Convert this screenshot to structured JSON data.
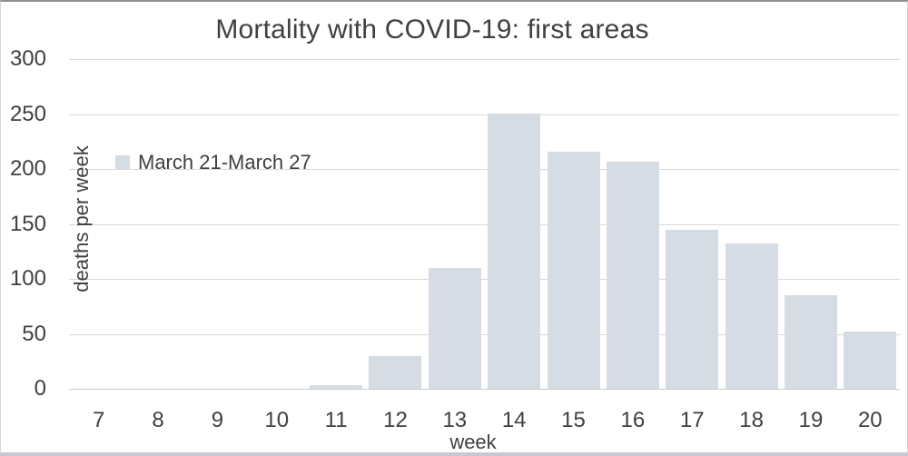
{
  "title": "Mortality with COVID-19: first areas",
  "legend": {
    "label": "March 21-March 27",
    "swatch_color": "#d6dce4"
  },
  "axes": {
    "y_title": "deaths per week",
    "x_title": "week"
  },
  "colors": {
    "bar": "#d6dce4",
    "gridline": "#d9d9d9",
    "zero_line": "#c9c9c9",
    "text": "#404040"
  },
  "chart_data": {
    "type": "bar",
    "title": "Mortality with COVID-19: first areas",
    "xlabel": "week",
    "ylabel": "deaths per week",
    "categories": [
      "7",
      "8",
      "9",
      "10",
      "11",
      "12",
      "13",
      "14",
      "15",
      "16",
      "17",
      "18",
      "19",
      "20"
    ],
    "series": [
      {
        "name": "March 21-March 27",
        "values": [
          0,
          0,
          0,
          0,
          3,
          30,
          110,
          250,
          216,
          207,
          145,
          132,
          85,
          52
        ]
      }
    ],
    "ylim": [
      0,
      300
    ],
    "y_ticks": [
      0,
      50,
      100,
      150,
      200,
      250,
      300
    ],
    "grid": true,
    "legend_position": "inside-upper-left",
    "bar_color": "#d6dce4"
  }
}
